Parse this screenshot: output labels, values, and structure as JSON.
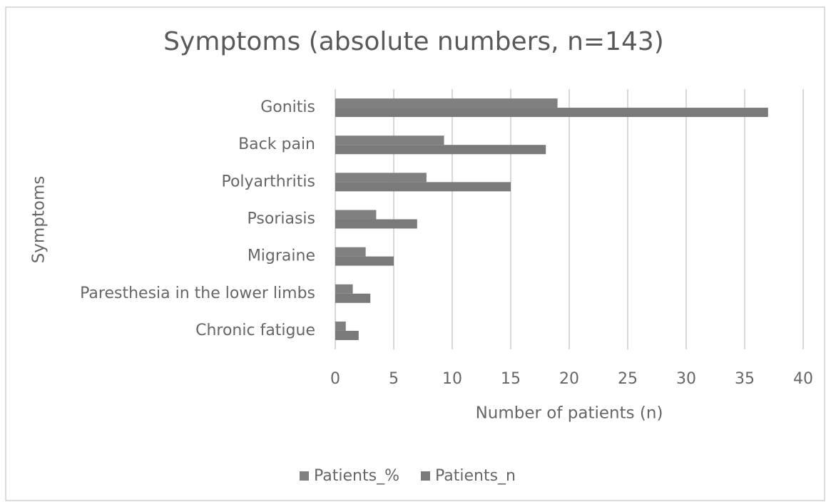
{
  "chart_data": {
    "type": "hbar",
    "title": "Symptoms (absolute numbers, n=143)",
    "x_label": "Number of patients (n)",
    "y_label": "Symptoms",
    "categories": [
      "Gonitis",
      "Back pain",
      "Polyarthritis",
      "Psoriasis",
      "Migraine",
      "Paresthesia in the lower limbs",
      "Chronic fatigue"
    ],
    "series": [
      {
        "name": "Patients_%",
        "color": "#808080",
        "values": [
          19,
          9.3,
          7.8,
          3.5,
          2.6,
          1.5,
          0.9
        ]
      },
      {
        "name": "Patients_n",
        "color": "#7a7a7a",
        "values": [
          37,
          18,
          15,
          7,
          5,
          3,
          2
        ]
      }
    ],
    "xlim": [
      0,
      40
    ],
    "xticks": [
      0,
      5,
      10,
      15,
      20,
      25,
      30,
      35,
      40
    ],
    "grid": true,
    "legend": "bottom"
  }
}
